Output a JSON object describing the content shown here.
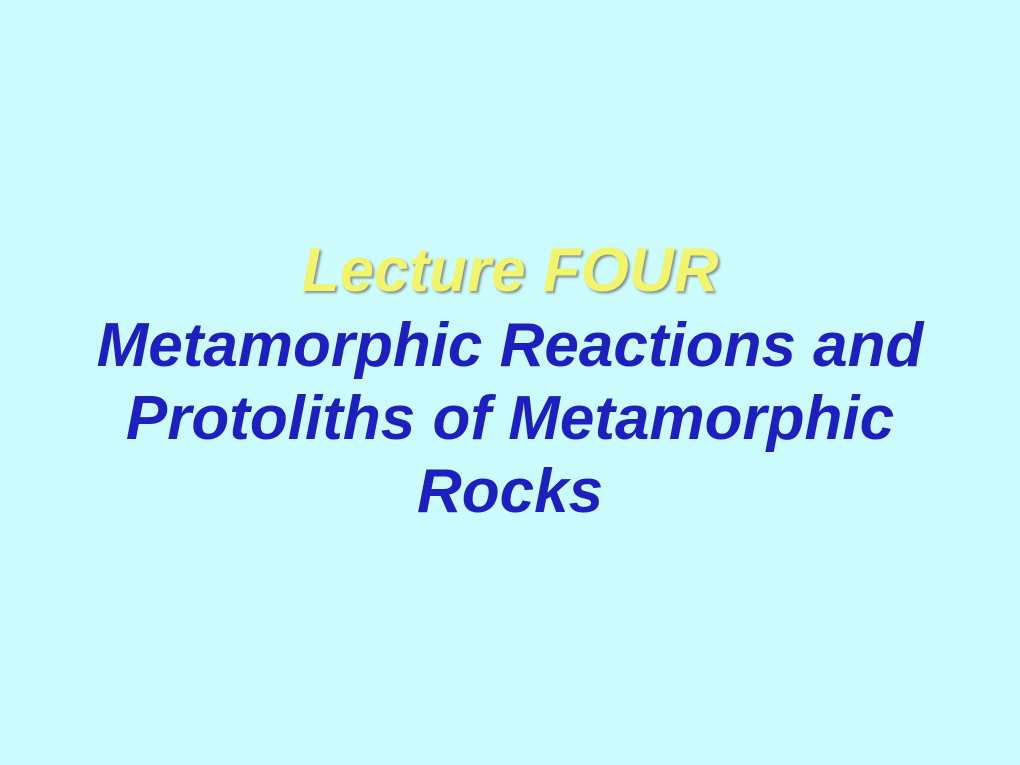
{
  "slide": {
    "title": "Lecture FOUR",
    "subtitle_line1": "Metamorphic Reactions and",
    "subtitle_line2": "Protoliths of Metamorphic",
    "subtitle_line3": "Rocks",
    "background_color": "#ccfbfd",
    "title_color": "#f2f46c",
    "title_fontsize": 62,
    "subtitle_color": "#1e1fbf",
    "subtitle_fontsize": 62
  }
}
